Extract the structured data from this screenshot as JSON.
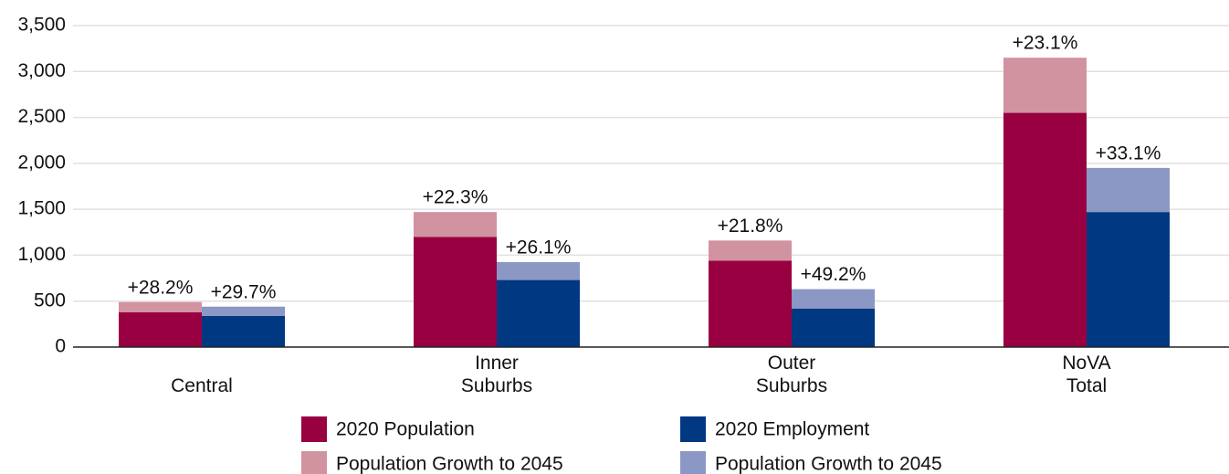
{
  "chart_data": {
    "type": "bar",
    "categories": [
      "Central",
      "Inner Suburbs",
      "Outer Suburbs",
      "NoVA Total"
    ],
    "stacks": [
      {
        "series": [
          {
            "name": "2020 Population",
            "color": "#990042",
            "values": [
              380,
              1200,
              940,
              2550
            ]
          },
          {
            "name": "Population Growth to 2045",
            "color": "#d1939f",
            "values": [
              110,
              270,
              220,
              600
            ]
          }
        ],
        "growth_labels": [
          "+28.2%",
          "+22.3%",
          "+21.8%",
          "+23.1%"
        ]
      },
      {
        "series": [
          {
            "name": "2020 Employment",
            "color": "#003882",
            "values": [
              340,
              730,
              420,
              1470
            ]
          },
          {
            "name": "Population Growth to 2045",
            "color": "#8b97c4",
            "values": [
              100,
              195,
              210,
              480
            ]
          }
        ],
        "growth_labels": [
          "+29.7%",
          "+26.1%",
          "+49.2%",
          "+33.1%"
        ]
      }
    ],
    "ylim": [
      0,
      3500
    ],
    "yticks": [
      0,
      500,
      {
        "value": 1000,
        "label": "1,000"
      },
      {
        "value": 1500,
        "label": "1,500"
      },
      {
        "value": 2000,
        "label": "2,000"
      },
      {
        "value": 2500,
        "label": "2,500"
      },
      {
        "value": 3000,
        "label": "3,000"
      },
      {
        "value": 3500,
        "label": "3,500"
      }
    ],
    "grid": true
  }
}
